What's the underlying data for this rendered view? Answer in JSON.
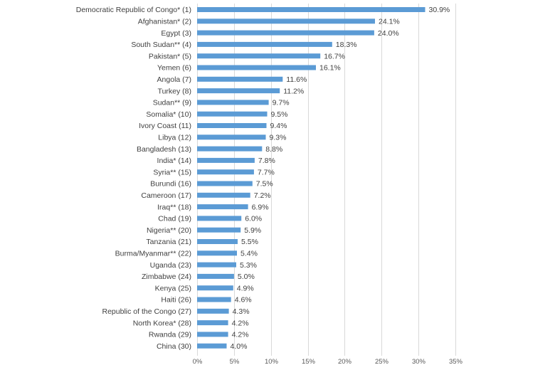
{
  "chart_data": {
    "type": "bar",
    "orientation": "horizontal",
    "categories": [
      "Democratic Republic of Congo* (1)",
      "Afghanistan* (2)",
      "Egypt (3)",
      "South Sudan** (4)",
      "Pakistan* (5)",
      "Yemen (6)",
      "Angola (7)",
      "Turkey (8)",
      "Sudan** (9)",
      "Somalia* (10)",
      "Ivory Coast (11)",
      "Libya (12)",
      "Bangladesh (13)",
      "India* (14)",
      "Syria** (15)",
      "Burundi (16)",
      "Cameroon (17)",
      "Iraq** (18)",
      "Chad (19)",
      "Nigeria** (20)",
      "Tanzania (21)",
      "Burma/Myanmar** (22)",
      "Uganda (23)",
      "Zimbabwe (24)",
      "Kenya (25)",
      "Haiti (26)",
      "Republic of the Congo (27)",
      "North Korea* (28)",
      "Rwanda (29)",
      "China (30)"
    ],
    "values": [
      30.9,
      24.1,
      24.0,
      18.3,
      16.7,
      16.1,
      11.6,
      11.2,
      9.7,
      9.5,
      9.4,
      9.3,
      8.8,
      7.8,
      7.7,
      7.5,
      7.2,
      6.9,
      6.0,
      5.9,
      5.5,
      5.4,
      5.3,
      5.0,
      4.9,
      4.6,
      4.3,
      4.2,
      4.2,
      4.0
    ],
    "value_labels": [
      "30.9%",
      "24.1%",
      "24.0%",
      "18.3%",
      "16.7%",
      "16.1%",
      "11.6%",
      "11.2%",
      "9.7%",
      "9.5%",
      "9.4%",
      "9.3%",
      "8.8%",
      "7.8%",
      "7.7%",
      "7.5%",
      "7.2%",
      "6.9%",
      "6.0%",
      "5.9%",
      "5.5%",
      "5.4%",
      "5.3%",
      "5.0%",
      "4.9%",
      "4.6%",
      "4.3%",
      "4.2%",
      "4.2%",
      "4.0%"
    ],
    "x_ticks": [
      0,
      5,
      10,
      15,
      20,
      25,
      30,
      35
    ],
    "x_tick_labels": [
      "0%",
      "5%",
      "10%",
      "15%",
      "20%",
      "25%",
      "30%",
      "35%"
    ],
    "xlim": [
      0,
      35
    ],
    "title": "",
    "xlabel": "",
    "ylabel": "",
    "grid": "vertical",
    "colors": {
      "bar": "#5b9bd5",
      "grid": "#d9d9d9",
      "text": "#404040"
    }
  }
}
